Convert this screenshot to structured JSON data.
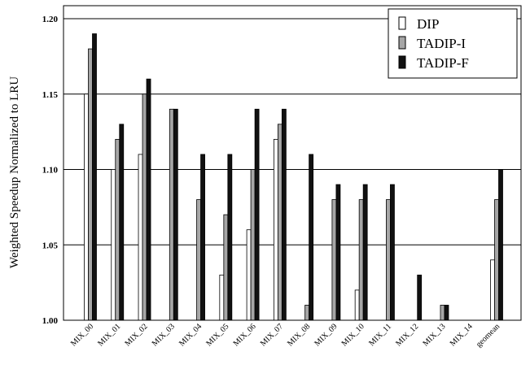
{
  "chart_data": {
    "type": "bar",
    "ylabel": "Weighted Speedup Normalized to LRU",
    "ylim": [
      1.0,
      1.2
    ],
    "yticks": [
      "1.00",
      "1.05",
      "1.10",
      "1.15",
      "1.20"
    ],
    "grid": true,
    "legend_position": "top-right",
    "categories": [
      "MIX_00",
      "MIX_01",
      "MIX_02",
      "MIX_03",
      "MIX_04",
      "MIX_05",
      "MIX_06",
      "MIX_07",
      "MIX_08",
      "MIX_09",
      "MIX_10",
      "MIX_11",
      "MIX_12",
      "MIX_13",
      "MIX_14",
      "geomean"
    ],
    "series": [
      {
        "name": "DIP",
        "color": "#ffffff",
        "values": [
          1.15,
          1.1,
          1.11,
          1.0,
          1.0,
          1.03,
          1.06,
          1.12,
          1.0,
          1.0,
          1.02,
          1.0,
          1.0,
          1.0,
          1.0,
          1.04
        ]
      },
      {
        "name": "TADIP-I",
        "color": "#a6a6a6",
        "values": [
          1.18,
          1.12,
          1.15,
          1.14,
          1.08,
          1.07,
          1.1,
          1.13,
          1.01,
          1.08,
          1.08,
          1.08,
          1.0,
          1.01,
          1.0,
          1.08
        ]
      },
      {
        "name": "TADIP-F",
        "color": "#111111",
        "values": [
          1.19,
          1.13,
          1.16,
          1.14,
          1.11,
          1.11,
          1.14,
          1.14,
          1.11,
          1.09,
          1.09,
          1.09,
          1.03,
          1.01,
          1.0,
          1.1
        ]
      }
    ]
  }
}
